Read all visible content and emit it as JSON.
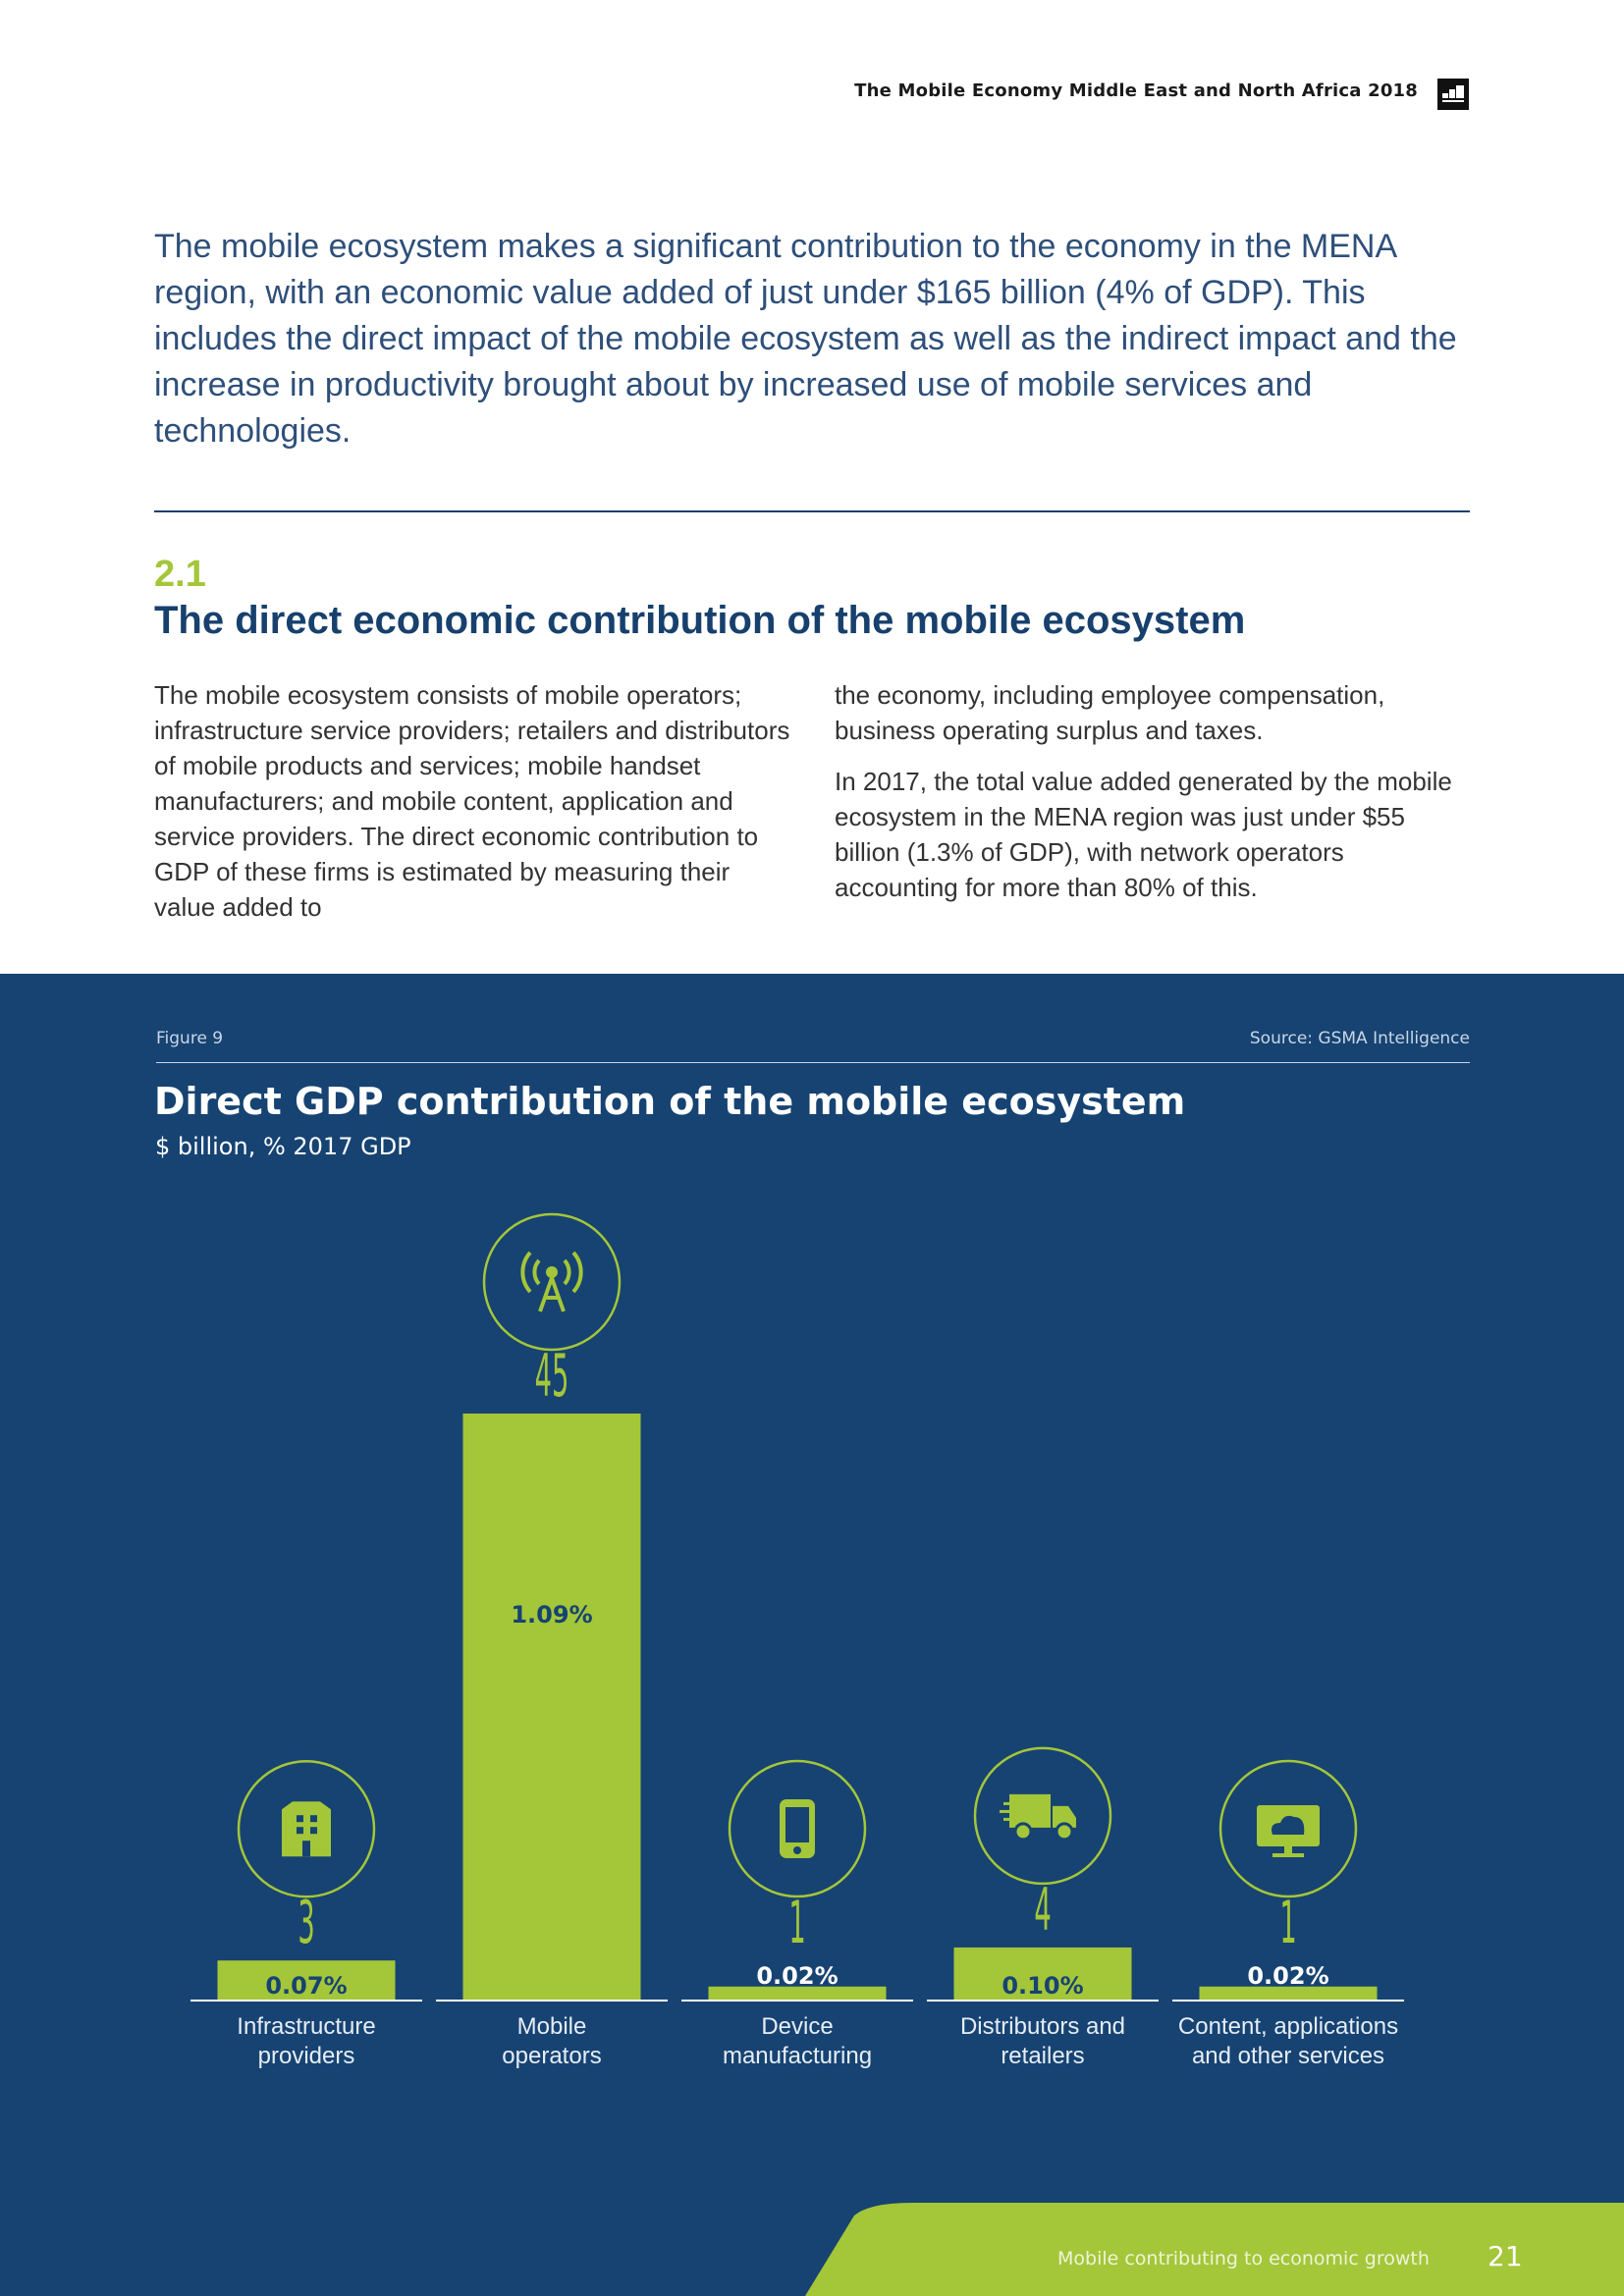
{
  "header": {
    "title": "The Mobile Economy Middle East and North Africa 2018",
    "logo_icon": "gsma-logo-icon"
  },
  "intro": "The mobile ecosystem makes a significant contribution to the economy in the MENA region, with an economic value added of just under $165 billion (4% of GDP). This includes the direct impact of the mobile ecosystem as well as the indirect impact and the increase in productivity brought about by increased use of mobile services and technologies.",
  "section": {
    "number": "2.1",
    "title": "The direct economic contribution of the mobile ecosystem",
    "left_paragraph": "The mobile ecosystem consists of mobile operators; infrastructure service providers; retailers and distributors of mobile products and services; mobile handset manufacturers; and mobile content, application and service providers. The direct economic contribution to GDP of these firms is estimated by measuring their value added to",
    "right_paragraphs": [
      "the economy, including employee compensation, business operating surplus and taxes.",
      "In 2017, the total value added generated by the mobile ecosystem in the MENA region was just under $55 billion (1.3% of GDP), with network operators accounting for more than 80% of this."
    ]
  },
  "figure": {
    "label": "Figure 9",
    "source": "Source: GSMA Intelligence",
    "title": "Direct GDP contribution of the mobile ecosystem",
    "subtitle": "$ billion, % 2017 GDP"
  },
  "colors": {
    "navy": "#164372",
    "lime": "#a4c639",
    "heading_navy": "#17406d"
  },
  "chart_data": {
    "type": "bar",
    "title": "Direct GDP contribution of the mobile ecosystem",
    "subtitle": "$ billion, % 2017 GDP",
    "categories": [
      [
        "Infrastructure",
        "providers"
      ],
      [
        "Mobile",
        "operators"
      ],
      [
        "Device",
        "manufacturing"
      ],
      [
        "Distributors and",
        "retailers"
      ],
      [
        "Content, applications",
        "and other services"
      ]
    ],
    "values": [
      3,
      45,
      1,
      4,
      1
    ],
    "value_labels": [
      "3",
      "45",
      "1",
      "4",
      "1"
    ],
    "gdp_share_labels": [
      "0.07%",
      "1.09%",
      "0.02%",
      "0.10%",
      "0.02%"
    ],
    "gdp_share_values": [
      0.07,
      1.09,
      0.02,
      0.1,
      0.02
    ],
    "icons": [
      "building-icon",
      "antenna-tower-icon",
      "smartphone-icon",
      "delivery-truck-icon",
      "cloud-monitor-icon"
    ],
    "ylim": [
      0,
      45
    ],
    "grid": false,
    "legend": "none"
  },
  "footer": {
    "text": "Mobile contributing to economic growth",
    "page_number": "21"
  }
}
